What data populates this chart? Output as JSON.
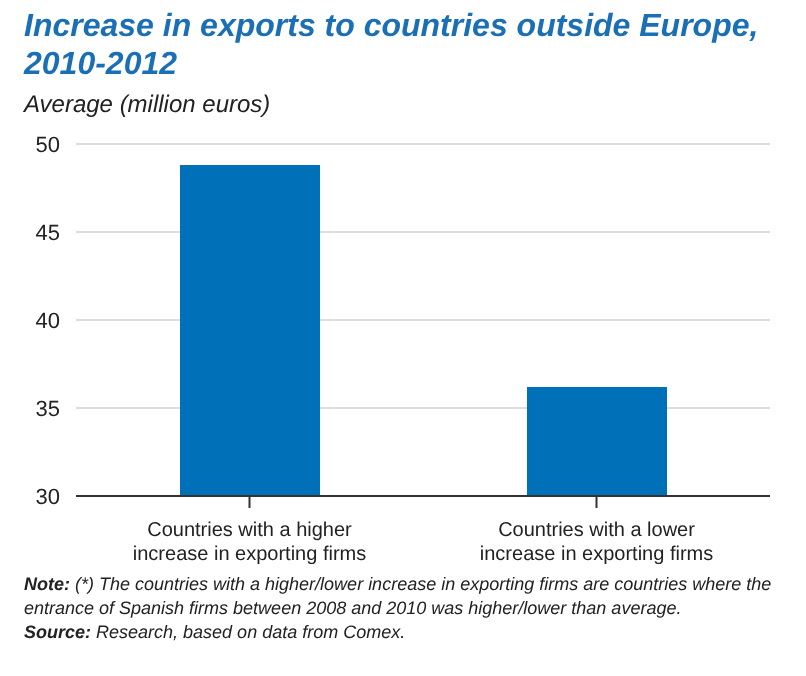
{
  "chart_data": {
    "type": "bar",
    "title": "Increase in exports to countries outside Europe, 2010-2012",
    "ylabel": "Average (million euros)",
    "categories": [
      "Countries with a higher increase in exporting firms",
      "Countries with a lower increase in exporting firms"
    ],
    "values": [
      48.8,
      36.2
    ],
    "color": "#0070b8",
    "ylim": [
      30,
      50
    ],
    "yticks": [
      30,
      35,
      40,
      45,
      50
    ],
    "grid": "y",
    "annotations": [
      "Note: (*) The countries with a higher/lower increase in exporting firms are countries where the entrance of Spanish firms between 2008 and 2010 was higher/lower than average.",
      "Source: Research, based on data from Comex."
    ]
  }
}
